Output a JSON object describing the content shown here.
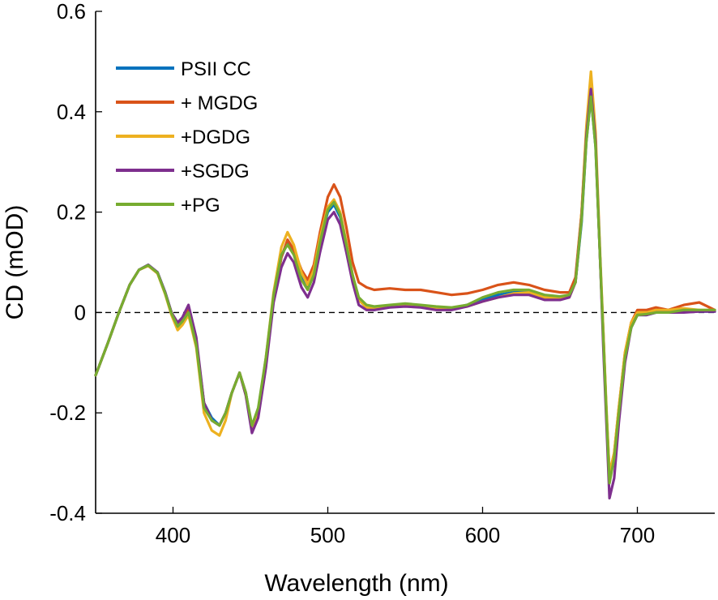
{
  "chart_data": {
    "type": "line",
    "title": "",
    "xlabel": "Wavelength (nm)",
    "ylabel": "CD (mOD)",
    "xlim": [
      350,
      750
    ],
    "ylim": [
      -0.4,
      0.6
    ],
    "xticks": [
      400,
      500,
      600,
      700
    ],
    "yticks": [
      -0.4,
      -0.2,
      0,
      0.2,
      0.4,
      0.6
    ],
    "ytick_labels": [
      "-0.4",
      "-0.2",
      "0",
      "0.2",
      "0.4",
      "0.6"
    ],
    "reference_line": {
      "y": 0,
      "style": "dashed"
    },
    "legend_position": "top-left",
    "grid": false,
    "series": [
      {
        "name": "PSII CC",
        "color": "#0072BD",
        "x": [
          350,
          358,
          365,
          372,
          378,
          384,
          390,
          395,
          399,
          403,
          406,
          410,
          415,
          420,
          425,
          430,
          434,
          438,
          443,
          447,
          451,
          455,
          460,
          465,
          470,
          474,
          478,
          483,
          487,
          491,
          495,
          500,
          504,
          508,
          512,
          516,
          520,
          525,
          530,
          540,
          550,
          560,
          570,
          580,
          590,
          600,
          610,
          620,
          630,
          640,
          650,
          656,
          660,
          664,
          667,
          670,
          673,
          676,
          678,
          680,
          682,
          685,
          688,
          692,
          696,
          700,
          706,
          712,
          720,
          730,
          740,
          750
        ],
        "y": [
          -0.125,
          -0.06,
          0.0,
          0.055,
          0.085,
          0.095,
          0.08,
          0.04,
          0.0,
          -0.025,
          -0.015,
          0.005,
          -0.06,
          -0.18,
          -0.21,
          -0.225,
          -0.2,
          -0.16,
          -0.12,
          -0.16,
          -0.23,
          -0.2,
          -0.1,
          0.03,
          0.11,
          0.14,
          0.12,
          0.07,
          0.05,
          0.08,
          0.14,
          0.2,
          0.215,
          0.19,
          0.13,
          0.07,
          0.025,
          0.01,
          0.005,
          0.012,
          0.015,
          0.012,
          0.008,
          0.008,
          0.015,
          0.025,
          0.035,
          0.04,
          0.04,
          0.03,
          0.03,
          0.035,
          0.06,
          0.18,
          0.34,
          0.43,
          0.33,
          0.1,
          -0.05,
          -0.2,
          -0.33,
          -0.29,
          -0.2,
          -0.09,
          -0.03,
          -0.005,
          -0.005,
          0.0,
          0.0,
          0.002,
          0.002,
          0.002
        ]
      },
      {
        "name": "+ MGDG",
        "color": "#D95319",
        "x": [
          350,
          358,
          365,
          372,
          378,
          384,
          390,
          395,
          399,
          403,
          406,
          410,
          415,
          420,
          425,
          430,
          434,
          438,
          443,
          447,
          451,
          455,
          460,
          465,
          470,
          474,
          478,
          483,
          487,
          491,
          495,
          500,
          504,
          508,
          512,
          516,
          520,
          525,
          530,
          540,
          550,
          560,
          570,
          580,
          590,
          600,
          610,
          620,
          630,
          640,
          650,
          656,
          660,
          664,
          667,
          670,
          673,
          676,
          678,
          680,
          682,
          685,
          688,
          692,
          696,
          700,
          706,
          712,
          720,
          730,
          740,
          750
        ],
        "y": [
          -0.125,
          -0.06,
          0.0,
          0.055,
          0.085,
          0.093,
          0.078,
          0.038,
          0.0,
          -0.025,
          -0.015,
          0.005,
          -0.06,
          -0.18,
          -0.215,
          -0.225,
          -0.2,
          -0.16,
          -0.12,
          -0.16,
          -0.235,
          -0.2,
          -0.1,
          0.03,
          0.11,
          0.145,
          0.125,
          0.085,
          0.065,
          0.095,
          0.16,
          0.23,
          0.255,
          0.23,
          0.17,
          0.1,
          0.06,
          0.05,
          0.045,
          0.048,
          0.045,
          0.045,
          0.04,
          0.035,
          0.038,
          0.045,
          0.055,
          0.06,
          0.055,
          0.045,
          0.04,
          0.04,
          0.07,
          0.2,
          0.36,
          0.45,
          0.34,
          0.1,
          -0.04,
          -0.2,
          -0.32,
          -0.28,
          -0.19,
          -0.08,
          -0.02,
          0.005,
          0.005,
          0.01,
          0.005,
          0.015,
          0.02,
          0.005
        ]
      },
      {
        "name": "+DGDG",
        "color": "#EDB120",
        "x": [
          350,
          358,
          365,
          372,
          378,
          384,
          390,
          395,
          399,
          403,
          406,
          410,
          415,
          420,
          425,
          430,
          434,
          438,
          443,
          447,
          451,
          455,
          460,
          465,
          470,
          474,
          478,
          483,
          487,
          491,
          495,
          500,
          504,
          508,
          512,
          516,
          520,
          525,
          530,
          540,
          550,
          560,
          570,
          580,
          590,
          600,
          610,
          620,
          630,
          640,
          650,
          656,
          660,
          664,
          667,
          670,
          673,
          676,
          678,
          680,
          682,
          685,
          688,
          692,
          696,
          700,
          706,
          712,
          720,
          730,
          740,
          750
        ],
        "y": [
          -0.125,
          -0.06,
          0.0,
          0.055,
          0.085,
          0.093,
          0.078,
          0.036,
          -0.005,
          -0.035,
          -0.025,
          -0.005,
          -0.07,
          -0.2,
          -0.235,
          -0.245,
          -0.215,
          -0.16,
          -0.12,
          -0.165,
          -0.23,
          -0.2,
          -0.09,
          0.04,
          0.13,
          0.16,
          0.135,
          0.08,
          0.055,
          0.085,
          0.15,
          0.21,
          0.225,
          0.2,
          0.14,
          0.075,
          0.025,
          0.01,
          0.008,
          0.012,
          0.015,
          0.012,
          0.008,
          0.008,
          0.012,
          0.022,
          0.03,
          0.038,
          0.04,
          0.03,
          0.028,
          0.03,
          0.06,
          0.2,
          0.37,
          0.48,
          0.36,
          0.11,
          -0.04,
          -0.19,
          -0.32,
          -0.28,
          -0.19,
          -0.08,
          -0.02,
          0.0,
          0.0,
          0.005,
          0.005,
          0.008,
          0.005,
          0.005
        ]
      },
      {
        "name": "+SGDG",
        "color": "#7E2F8E",
        "x": [
          350,
          358,
          365,
          372,
          378,
          384,
          390,
          395,
          399,
          403,
          406,
          410,
          415,
          420,
          425,
          430,
          434,
          438,
          443,
          447,
          451,
          455,
          460,
          465,
          470,
          474,
          478,
          483,
          487,
          491,
          495,
          500,
          504,
          508,
          512,
          516,
          520,
          525,
          530,
          540,
          550,
          560,
          570,
          580,
          590,
          600,
          610,
          620,
          630,
          640,
          650,
          656,
          660,
          664,
          667,
          670,
          673,
          676,
          678,
          680,
          682,
          685,
          688,
          692,
          696,
          700,
          706,
          712,
          720,
          730,
          740,
          750
        ],
        "y": [
          -0.125,
          -0.06,
          0.0,
          0.055,
          0.085,
          0.095,
          0.08,
          0.04,
          0.0,
          -0.02,
          -0.01,
          0.015,
          -0.05,
          -0.18,
          -0.215,
          -0.225,
          -0.2,
          -0.16,
          -0.12,
          -0.165,
          -0.24,
          -0.21,
          -0.11,
          0.02,
          0.09,
          0.118,
          0.1,
          0.05,
          0.03,
          0.06,
          0.12,
          0.185,
          0.2,
          0.175,
          0.12,
          0.06,
          0.015,
          0.005,
          0.005,
          0.01,
          0.012,
          0.01,
          0.005,
          0.005,
          0.012,
          0.022,
          0.03,
          0.035,
          0.035,
          0.025,
          0.025,
          0.03,
          0.06,
          0.19,
          0.35,
          0.445,
          0.34,
          0.1,
          -0.07,
          -0.22,
          -0.37,
          -0.33,
          -0.22,
          -0.1,
          -0.03,
          -0.005,
          -0.005,
          0.0,
          0.0,
          0.0,
          0.002,
          0.002
        ]
      },
      {
        "name": "+PG",
        "color": "#77AC30",
        "x": [
          350,
          358,
          365,
          372,
          378,
          384,
          390,
          395,
          399,
          403,
          406,
          410,
          415,
          420,
          425,
          430,
          434,
          438,
          443,
          447,
          451,
          455,
          460,
          465,
          470,
          474,
          478,
          483,
          487,
          491,
          495,
          500,
          504,
          508,
          512,
          516,
          520,
          525,
          530,
          540,
          550,
          560,
          570,
          580,
          590,
          600,
          610,
          620,
          630,
          640,
          650,
          656,
          660,
          664,
          667,
          670,
          673,
          676,
          678,
          680,
          682,
          685,
          688,
          692,
          696,
          700,
          706,
          712,
          720,
          730,
          740,
          750
        ],
        "y": [
          -0.125,
          -0.06,
          0.0,
          0.055,
          0.085,
          0.094,
          0.079,
          0.038,
          -0.002,
          -0.028,
          -0.018,
          0.0,
          -0.065,
          -0.19,
          -0.215,
          -0.225,
          -0.2,
          -0.16,
          -0.12,
          -0.16,
          -0.225,
          -0.19,
          -0.09,
          0.035,
          0.115,
          0.135,
          0.115,
          0.065,
          0.045,
          0.075,
          0.14,
          0.205,
          0.22,
          0.195,
          0.135,
          0.075,
          0.03,
          0.015,
          0.012,
          0.015,
          0.018,
          0.015,
          0.012,
          0.01,
          0.015,
          0.03,
          0.04,
          0.045,
          0.045,
          0.035,
          0.032,
          0.035,
          0.06,
          0.185,
          0.34,
          0.43,
          0.33,
          0.1,
          -0.05,
          -0.2,
          -0.34,
          -0.29,
          -0.2,
          -0.09,
          -0.03,
          -0.005,
          -0.003,
          0.0,
          0.0,
          0.005,
          0.005,
          0.005
        ]
      }
    ]
  }
}
